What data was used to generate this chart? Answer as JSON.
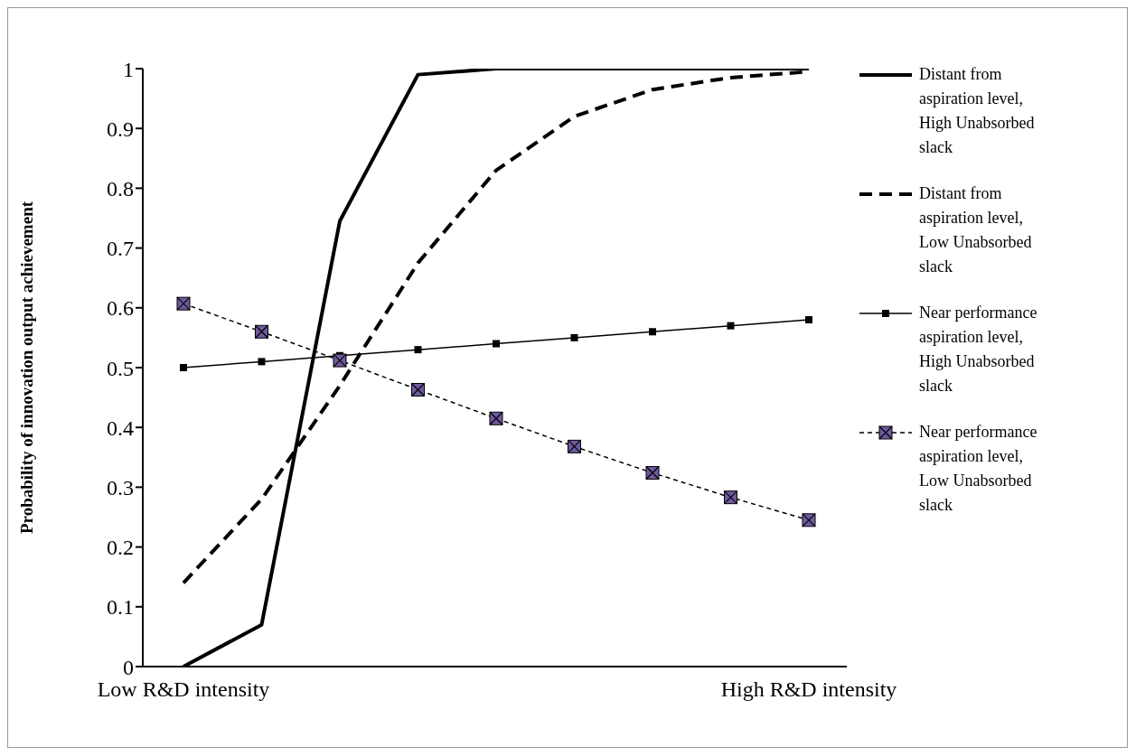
{
  "chart_data": {
    "type": "line",
    "ylabel": "Probability of innovation output achievement",
    "categories": [
      "Low R&D intensity",
      null,
      null,
      null,
      null,
      null,
      null,
      null,
      "High R&D intensity"
    ],
    "ylim": [
      0,
      1
    ],
    "yticks": [
      0,
      0.1,
      0.2,
      0.3,
      0.4,
      0.5,
      0.6,
      0.7,
      0.8,
      0.9,
      1
    ],
    "legend": "right",
    "series": [
      {
        "name": "Distant from aspiration level, High Unabsorbed slack",
        "color": "#000000",
        "line_style": "solid",
        "marker": "none",
        "values": [
          0,
          0.07,
          0.745,
          0.99,
          1,
          1,
          1,
          1,
          1
        ]
      },
      {
        "name": "Distant from aspiration level, Low Unabsorbed slack",
        "color": "#000000",
        "line_style": "dashed",
        "marker": "none",
        "values": [
          0.14,
          0.28,
          0.47,
          0.675,
          0.83,
          0.92,
          0.965,
          0.985,
          0.995
        ]
      },
      {
        "name": "Near performance aspiration level, High Unabsorbed slack",
        "color": "#000000",
        "line_style": "solid",
        "marker": "square",
        "values": [
          0.5,
          0.51,
          0.52,
          0.53,
          0.54,
          0.55,
          0.56,
          0.57,
          0.58
        ]
      },
      {
        "name": "Near performance aspiration level, Low Unabsorbed slack",
        "color": "#6f5a9e",
        "line_style": "dashed",
        "marker": "square",
        "values": [
          0.607,
          0.56,
          0.512,
          0.463,
          0.415,
          0.368,
          0.324,
          0.283,
          0.245
        ]
      }
    ]
  }
}
